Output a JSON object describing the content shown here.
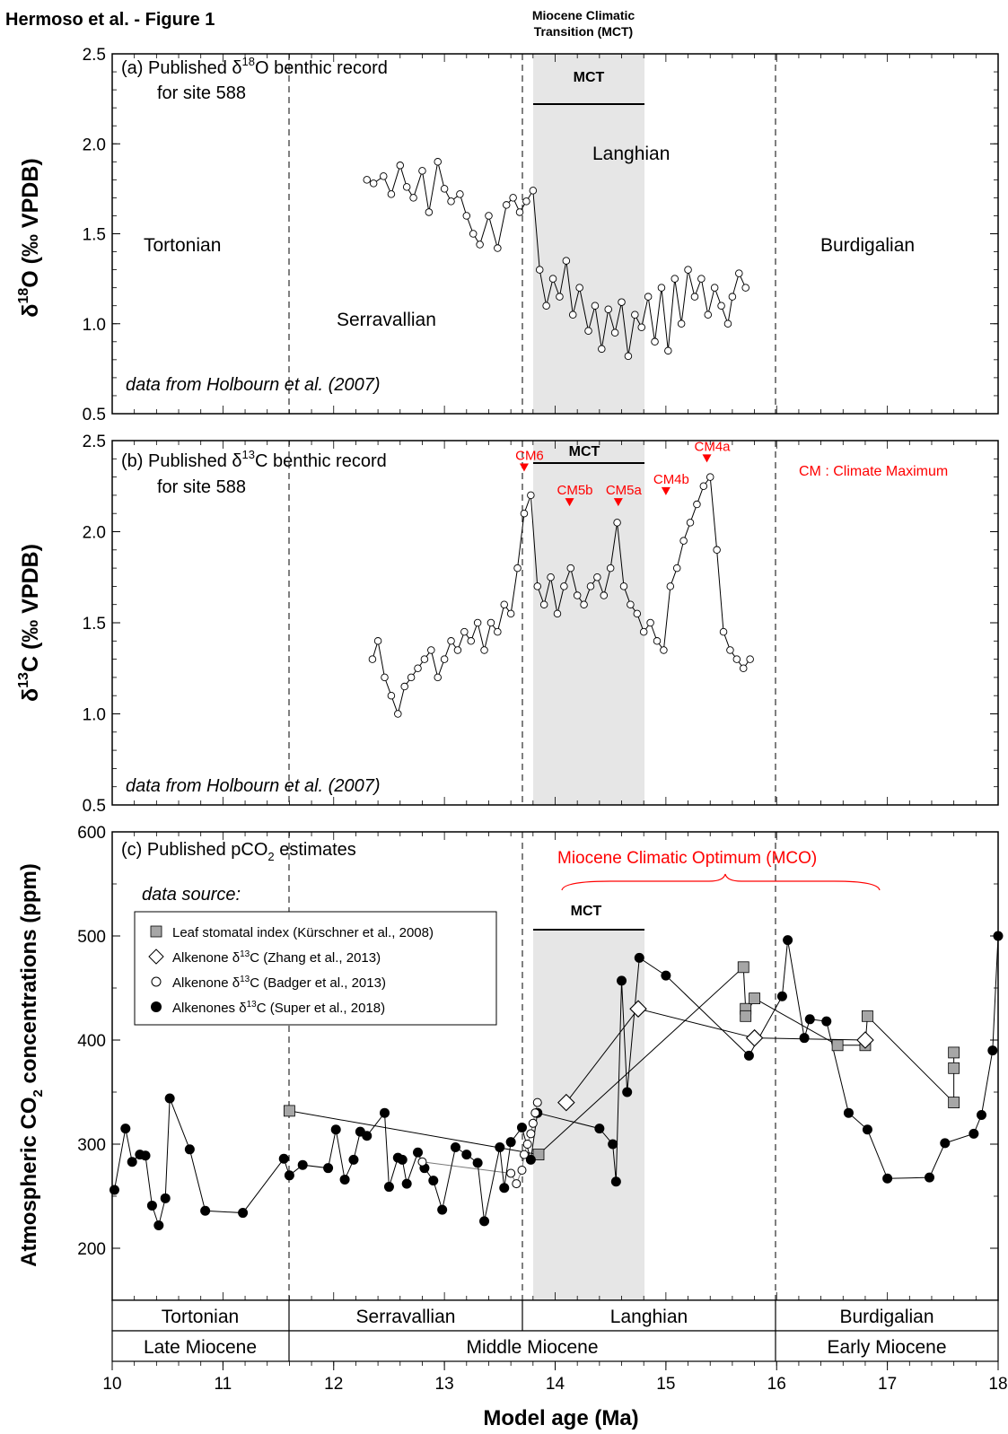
{
  "figure_title": "Hermoso et al. - Figure 1",
  "header_mct": [
    "Miocene Climatic",
    "Transition (MCT)"
  ],
  "mct_label": "MCT",
  "xlabel": "Model age (Ma)",
  "xticks": [
    10,
    11,
    12,
    13,
    14,
    15,
    16,
    17,
    18
  ],
  "panels": {
    "a": {
      "title_line1_pre": "(a) Published δ",
      "title_sup": "18",
      "title_line1_post": "O benthic record",
      "title_line2": "for site 588",
      "ylabel_main": "δ",
      "ylabel_sup": "18",
      "ylabel_post": "O  (‰ VPDB)",
      "yticks": [
        "0.5",
        "1.0",
        "1.5",
        "2.0",
        "2.5"
      ],
      "stages": {
        "tortonian": "Tortonian",
        "serravallian": "Serravallian",
        "langhian": "Langhian",
        "burdigalian": "Burdigalian"
      },
      "source": "data from Holbourn et al. (2007)"
    },
    "b": {
      "title_line1_pre": "(b) Published δ",
      "title_sup": "13",
      "title_line1_post": "C benthic record",
      "title_line2": "for site 588",
      "ylabel_main": "δ",
      "ylabel_sup": "13",
      "ylabel_post": "C  (‰ VPDB)",
      "yticks": [
        "0.5",
        "1.0",
        "1.5",
        "2.0",
        "2.5"
      ],
      "cm_labels": [
        "CM6",
        "CM5b",
        "CM5a",
        "CM4b",
        "CM4a"
      ],
      "cm_legend": "CM : Climate Maximum",
      "source": "data from Holbourn et al. (2007)"
    },
    "c": {
      "title_pre": "(c) Published pCO",
      "title_sub": "2",
      "title_post": " estimates",
      "mco_label": "Miocene Climatic Optimum (MCO)",
      "data_source": "data source:",
      "ylabel_pre": "Atmospheric CO",
      "ylabel_sub": "2",
      "ylabel_post": " concentrations (ppm)",
      "yticks": [
        "200",
        "300",
        "400",
        "500",
        "600"
      ],
      "legend": {
        "leaf": "Leaf stomatal index (Kürschner et al., 2008)",
        "zhang_pre": "Alkenone δ",
        "zhang_sup": "13",
        "zhang_post": "C (Zhang et al., 2013)",
        "badger_pre": "Alkenone δ",
        "badger_sup": "13",
        "badger_post": "C (Badger et al., 2013)",
        "super_pre": "Alkenones δ",
        "super_sup": "13",
        "super_post": "C (Super et al., 2018)"
      }
    }
  },
  "stage_band": [
    "Tortonian",
    "Serravallian",
    "Langhian",
    "Burdigalian"
  ],
  "epoch_band": [
    "Late Miocene",
    "Middle Miocene",
    "Early Miocene"
  ],
  "colors": {
    "accent_red": "#ff0000",
    "mct_shade": "#e6e6e6",
    "leaf_gray": "#a6a6a6"
  },
  "chart_data": [
    {
      "type": "scatter",
      "title": "(a) Published δ18O benthic record for site 588",
      "xlabel": "Model age (Ma)",
      "ylabel": "δ18O (‰ VPDB)",
      "xlim": [
        10,
        18
      ],
      "ylim": [
        0.5,
        2.5
      ],
      "boundaries_ma": [
        11.6,
        13.7,
        15.97
      ],
      "mct_band_ma": [
        13.8,
        14.8
      ],
      "series": [
        {
          "x": [
            12.3,
            12.36,
            12.45,
            12.52,
            12.6,
            12.66,
            12.72,
            12.8,
            12.86,
            12.94,
            13.0,
            13.06,
            13.14,
            13.2,
            13.26,
            13.32,
            13.4,
            13.48,
            13.56,
            13.62,
            13.68,
            13.74,
            13.8,
            13.86,
            13.92,
            13.98,
            14.04,
            14.1,
            14.16,
            14.22,
            14.3,
            14.36,
            14.42,
            14.48,
            14.54,
            14.6,
            14.66,
            14.72,
            14.78,
            14.84,
            14.9,
            14.96,
            15.02,
            15.08,
            15.14,
            15.2,
            15.26,
            15.32,
            15.38,
            15.44,
            15.5,
            15.56,
            15.6,
            15.66,
            15.72
          ],
          "y": [
            1.8,
            1.78,
            1.82,
            1.72,
            1.88,
            1.76,
            1.7,
            1.85,
            1.62,
            1.9,
            1.75,
            1.68,
            1.72,
            1.6,
            1.5,
            1.44,
            1.6,
            1.42,
            1.66,
            1.7,
            1.62,
            1.68,
            1.74,
            1.3,
            1.1,
            1.25,
            1.15,
            1.35,
            1.05,
            1.2,
            0.96,
            1.1,
            0.86,
            1.08,
            0.95,
            1.12,
            0.82,
            1.05,
            0.98,
            1.15,
            0.9,
            1.2,
            0.85,
            1.25,
            1.0,
            1.3,
            1.15,
            1.25,
            1.05,
            1.2,
            1.1,
            1.0,
            1.15,
            1.28,
            1.2
          ]
        }
      ]
    },
    {
      "type": "scatter",
      "title": "(b) Published δ13C benthic record for site 588",
      "xlabel": "Model age (Ma)",
      "ylabel": "δ13C (‰ VPDB)",
      "xlim": [
        10,
        18
      ],
      "ylim": [
        0.5,
        2.5
      ],
      "annotations": [
        {
          "label": "CM6",
          "x": 13.72,
          "y": 2.33
        },
        {
          "label": "CM5b",
          "x": 14.13,
          "y": 2.14
        },
        {
          "label": "CM5a",
          "x": 14.57,
          "y": 2.14
        },
        {
          "label": "CM4b",
          "x": 15.0,
          "y": 2.2
        },
        {
          "label": "CM4a",
          "x": 15.37,
          "y": 2.38
        }
      ],
      "series": [
        {
          "x": [
            12.35,
            12.4,
            12.46,
            12.52,
            12.58,
            12.64,
            12.7,
            12.76,
            12.82,
            12.88,
            12.94,
            13.0,
            13.06,
            13.12,
            13.18,
            13.24,
            13.3,
            13.36,
            13.42,
            13.48,
            13.54,
            13.6,
            13.66,
            13.72,
            13.78,
            13.84,
            13.9,
            13.96,
            14.02,
            14.08,
            14.14,
            14.2,
            14.26,
            14.32,
            14.38,
            14.44,
            14.5,
            14.56,
            14.62,
            14.68,
            14.74,
            14.8,
            14.86,
            14.92,
            14.98,
            15.04,
            15.1,
            15.16,
            15.22,
            15.28,
            15.34,
            15.4,
            15.46,
            15.52,
            15.58,
            15.64,
            15.7,
            15.76
          ],
          "y": [
            1.3,
            1.4,
            1.2,
            1.1,
            1.0,
            1.15,
            1.2,
            1.25,
            1.3,
            1.35,
            1.2,
            1.3,
            1.4,
            1.35,
            1.45,
            1.4,
            1.5,
            1.35,
            1.5,
            1.45,
            1.6,
            1.55,
            1.8,
            2.1,
            2.2,
            1.7,
            1.6,
            1.75,
            1.55,
            1.7,
            1.8,
            1.65,
            1.6,
            1.7,
            1.75,
            1.65,
            1.8,
            2.05,
            1.7,
            1.6,
            1.55,
            1.45,
            1.5,
            1.4,
            1.35,
            1.7,
            1.8,
            1.95,
            2.05,
            2.15,
            2.25,
            2.3,
            1.9,
            1.45,
            1.35,
            1.3,
            1.25,
            1.3
          ]
        }
      ]
    },
    {
      "type": "scatter",
      "title": "(c) Published pCO2 estimates",
      "xlabel": "Model age (Ma)",
      "ylabel": "Atmospheric CO2 concentrations (ppm)",
      "xlim": [
        10,
        18
      ],
      "ylim": [
        150,
        600
      ],
      "series": [
        {
          "name": "Leaf stomatal index (Kürschner et al., 2008)",
          "x": [
            11.6,
            13.85,
            15.7,
            15.72,
            15.72,
            15.8,
            16.55,
            16.8,
            16.82,
            17.6,
            17.6,
            17.6
          ],
          "y": [
            332,
            290,
            470,
            430,
            423,
            440,
            395,
            395,
            423,
            340,
            373,
            388
          ]
        },
        {
          "name": "Alkenone δ13C (Zhang et al., 2013)",
          "x": [
            14.1,
            14.75,
            15.8,
            16.8
          ],
          "y": [
            340,
            430,
            402,
            400
          ]
        },
        {
          "name": "Alkenone δ13C (Badger et al., 2013)",
          "x": [
            12.8,
            13.6,
            13.65,
            13.7,
            13.72,
            13.75,
            13.78,
            13.8,
            13.82,
            13.84
          ],
          "y": [
            283,
            272,
            262,
            275,
            290,
            300,
            310,
            320,
            330,
            340
          ]
        },
        {
          "name": "Alkenones δ13C (Super et al., 2018)",
          "x": [
            10.02,
            10.12,
            10.18,
            10.25,
            10.3,
            10.36,
            10.42,
            10.48,
            10.52,
            10.7,
            10.84,
            11.18,
            11.55,
            11.6,
            11.72,
            11.95,
            12.02,
            12.1,
            12.18,
            12.24,
            12.3,
            12.46,
            12.5,
            12.58,
            12.62,
            12.66,
            12.76,
            12.82,
            12.9,
            12.98,
            13.1,
            13.2,
            13.3,
            13.36,
            13.5,
            13.54,
            13.6,
            13.7,
            13.78,
            13.84,
            14.4,
            14.52,
            14.55,
            14.6,
            14.65,
            14.76,
            15.0,
            15.75,
            16.05,
            16.1,
            16.25,
            16.3,
            16.45,
            16.65,
            16.82,
            17.0,
            17.38,
            17.52,
            17.78,
            17.85,
            17.95,
            18.0
          ],
          "y": [
            256,
            315,
            283,
            290,
            289,
            241,
            222,
            248,
            344,
            295,
            236,
            234,
            286,
            270,
            280,
            277,
            314,
            266,
            285,
            312,
            308,
            330,
            259,
            287,
            285,
            262,
            292,
            277,
            265,
            237,
            297,
            290,
            282,
            226,
            297,
            258,
            302,
            316,
            285,
            330,
            315,
            300,
            264,
            457,
            350,
            479,
            462,
            385,
            442,
            496,
            402,
            420,
            418,
            330,
            314,
            267,
            268,
            301,
            310,
            328,
            390,
            500
          ]
        }
      ]
    }
  ]
}
